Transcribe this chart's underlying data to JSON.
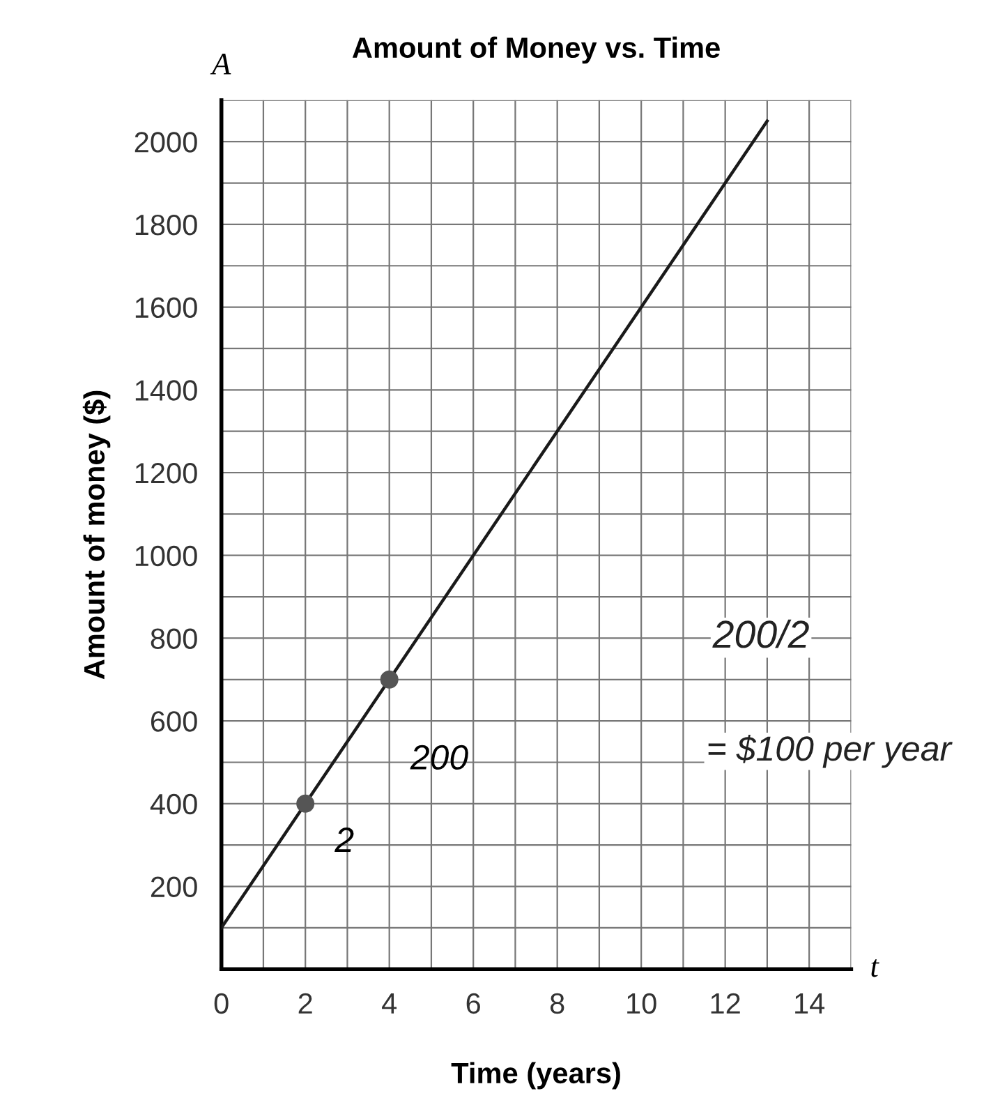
{
  "chart_data": {
    "type": "line",
    "title": "Amount of Money vs. Time",
    "xlabel": "Time (years)",
    "ylabel": "Amount of money ($)",
    "series": [
      {
        "color": "#1a1a1a",
        "x": [
          0,
          2,
          4,
          13
        ],
        "values": [
          100,
          400,
          700,
          2050
        ],
        "marker": "none"
      },
      {
        "type": "scatter",
        "color": "#555555",
        "x": [
          2,
          4
        ],
        "values": [
          400,
          700
        ],
        "marker": "circle"
      }
    ],
    "xlim": [
      0,
      15
    ],
    "ylim": [
      0,
      2100
    ],
    "xticks": [
      0,
      {
        "value": 1,
        "label": null
      },
      2,
      {
        "value": 3,
        "label": null
      },
      4,
      {
        "value": 5,
        "label": null
      },
      6,
      {
        "value": 7,
        "label": null
      },
      8,
      {
        "value": 9,
        "label": null
      },
      10,
      {
        "value": 11,
        "label": null
      },
      12,
      {
        "value": 13,
        "label": null
      },
      14,
      {
        "value": 15,
        "label": null
      }
    ],
    "yticks": [
      {
        "value": 100,
        "label": null
      },
      200,
      {
        "value": 300,
        "label": null
      },
      400,
      {
        "value": 500,
        "label": null
      },
      600,
      {
        "value": 700,
        "label": null
      },
      800,
      {
        "value": 900,
        "label": null
      },
      1000,
      {
        "value": 1100,
        "label": null
      },
      1200,
      {
        "value": 1300,
        "label": null
      },
      1400,
      {
        "value": 1500,
        "label": null
      },
      1600,
      {
        "value": 1700,
        "label": null
      },
      1800,
      {
        "value": 1900,
        "label": null
      },
      2000,
      {
        "value": 2100,
        "label": null
      }
    ],
    "grid": true,
    "legend": false,
    "annotations": [
      "A",
      "t",
      "2",
      "200",
      "200/2",
      "= $100 per year"
    ]
  }
}
